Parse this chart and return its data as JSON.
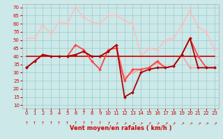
{
  "xlabel": "Vent moyen/en rafales ( km/h )",
  "xlim": [
    -0.5,
    23.5
  ],
  "ylim": [
    8,
    72
  ],
  "yticks": [
    10,
    15,
    20,
    25,
    30,
    35,
    40,
    45,
    50,
    55,
    60,
    65,
    70
  ],
  "xticks": [
    0,
    1,
    2,
    3,
    4,
    5,
    6,
    7,
    8,
    9,
    10,
    11,
    12,
    13,
    14,
    15,
    16,
    17,
    18,
    19,
    20,
    21,
    22,
    23
  ],
  "bg_color": "#cce8e8",
  "grid_color": "#99cccc",
  "series": [
    {
      "name": "rafales_pink",
      "color": "#ffbbbb",
      "lw": 1.0,
      "marker": "D",
      "ms": 2.0,
      "data_x": [
        0,
        1,
        2,
        3,
        4,
        5,
        6,
        7,
        8,
        9,
        10,
        11,
        12,
        13,
        14,
        15,
        16,
        17,
        18,
        19,
        20,
        21,
        22,
        23
      ],
      "data_y": [
        51,
        51,
        59,
        54,
        61,
        60,
        70,
        64,
        61,
        60,
        65,
        65,
        62,
        60,
        40,
        45,
        44,
        50,
        51,
        59,
        68,
        58,
        55,
        44
      ]
    },
    {
      "name": "vent_pink",
      "color": "#ff9999",
      "lw": 1.0,
      "marker": "D",
      "ms": 2.0,
      "data_x": [
        0,
        1,
        2,
        3,
        4,
        5,
        6,
        7,
        8,
        9,
        10,
        11,
        12,
        13,
        14,
        15,
        16,
        17,
        18,
        19,
        20,
        21,
        22,
        23
      ],
      "data_y": [
        33,
        37,
        41,
        40,
        40,
        40,
        41,
        43,
        40,
        40,
        43,
        47,
        27,
        30,
        32,
        33,
        36,
        33,
        34,
        41,
        33,
        33,
        33,
        33
      ]
    },
    {
      "name": "avg_flat",
      "color": "#cc0000",
      "lw": 1.2,
      "marker": null,
      "ms": 0,
      "data_x": [
        0,
        1,
        2,
        3,
        4,
        5,
        6,
        7,
        8,
        9,
        10,
        11,
        12,
        13,
        14,
        15,
        16,
        17,
        18,
        19,
        20,
        21,
        22,
        23
      ],
      "data_y": [
        40,
        40,
        40,
        40,
        40,
        40,
        40,
        40,
        40,
        40,
        40,
        40,
        40,
        40,
        40,
        40,
        40,
        40,
        40,
        40,
        40,
        40,
        40,
        40
      ]
    },
    {
      "name": "rafales_red",
      "color": "#ff4444",
      "lw": 1.3,
      "marker": "D",
      "ms": 2.0,
      "data_x": [
        0,
        1,
        2,
        3,
        4,
        5,
        6,
        7,
        8,
        9,
        10,
        11,
        12,
        13,
        14,
        15,
        16,
        17,
        18,
        19,
        20,
        21,
        22,
        23
      ],
      "data_y": [
        33,
        37,
        41,
        40,
        40,
        40,
        47,
        44,
        37,
        32,
        44,
        45,
        25,
        32,
        32,
        33,
        37,
        33,
        34,
        41,
        51,
        40,
        33,
        33
      ]
    },
    {
      "name": "vent_dark",
      "color": "#aa0000",
      "lw": 1.3,
      "marker": "D",
      "ms": 2.0,
      "data_x": [
        0,
        1,
        2,
        3,
        4,
        5,
        6,
        7,
        8,
        9,
        10,
        11,
        12,
        13,
        14,
        15,
        16,
        17,
        18,
        19,
        20,
        21,
        22,
        23
      ],
      "data_y": [
        33,
        37,
        41,
        40,
        40,
        40,
        41,
        43,
        40,
        40,
        43,
        47,
        15,
        18,
        30,
        32,
        33,
        33,
        34,
        41,
        51,
        33,
        33,
        33
      ]
    }
  ],
  "arrow_angles": [
    0,
    0,
    0,
    0,
    0,
    0,
    0,
    0,
    0,
    0,
    15,
    30,
    30,
    30,
    30,
    30,
    30,
    30,
    30,
    45,
    45,
    45,
    45,
    45
  ],
  "arrow_color": "#cc0000",
  "axis_fontsize": 6,
  "tick_fontsize": 5
}
